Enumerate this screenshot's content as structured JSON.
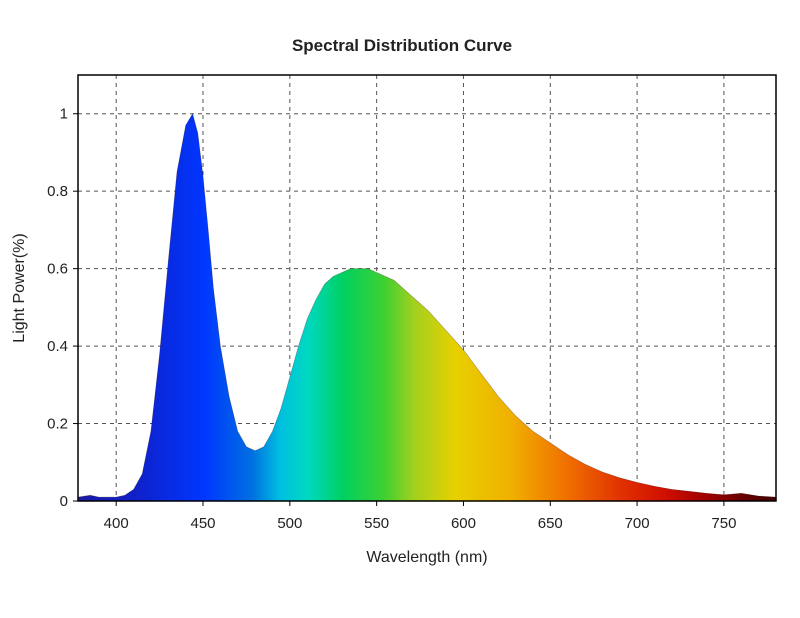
{
  "chart_data": {
    "type": "area",
    "title": "Spectral Distribution Curve",
    "xlabel": "Wavelength  (nm)",
    "ylabel": "Light Power(%)",
    "xlim": [
      378,
      780
    ],
    "ylim": [
      0,
      1.1
    ],
    "x_ticks": [
      400,
      450,
      500,
      550,
      600,
      650,
      700,
      750
    ],
    "y_ticks": [
      0,
      0.2,
      0.4,
      0.6,
      0.8,
      1
    ],
    "y_tick_labels": [
      "0",
      "0.2",
      "0.4",
      "0.6",
      "0.8",
      "1"
    ],
    "grid": true,
    "fill": "visible-spectrum gradient",
    "series": [
      {
        "x": [
          378,
          385,
          390,
          395,
          400,
          405,
          410,
          415,
          420,
          425,
          430,
          435,
          440,
          444,
          447,
          450,
          453,
          456,
          460,
          465,
          470,
          475,
          480,
          485,
          490,
          495,
          500,
          505,
          510,
          515,
          520,
          525,
          530,
          535,
          540,
          545,
          550,
          555,
          560,
          565,
          570,
          575,
          580,
          590,
          600,
          610,
          620,
          630,
          640,
          650,
          660,
          670,
          680,
          690,
          700,
          710,
          720,
          730,
          740,
          750,
          760,
          770,
          780
        ],
        "y": [
          0.01,
          0.015,
          0.01,
          0.01,
          0.01,
          0.015,
          0.03,
          0.07,
          0.18,
          0.38,
          0.62,
          0.85,
          0.97,
          1.0,
          0.95,
          0.84,
          0.7,
          0.55,
          0.4,
          0.27,
          0.18,
          0.14,
          0.13,
          0.14,
          0.18,
          0.24,
          0.32,
          0.4,
          0.47,
          0.52,
          0.56,
          0.58,
          0.59,
          0.6,
          0.6,
          0.6,
          0.59,
          0.58,
          0.57,
          0.55,
          0.53,
          0.51,
          0.49,
          0.44,
          0.39,
          0.33,
          0.27,
          0.22,
          0.18,
          0.15,
          0.12,
          0.095,
          0.075,
          0.06,
          0.048,
          0.038,
          0.03,
          0.025,
          0.02,
          0.016,
          0.02,
          0.013,
          0.01
        ]
      }
    ]
  }
}
